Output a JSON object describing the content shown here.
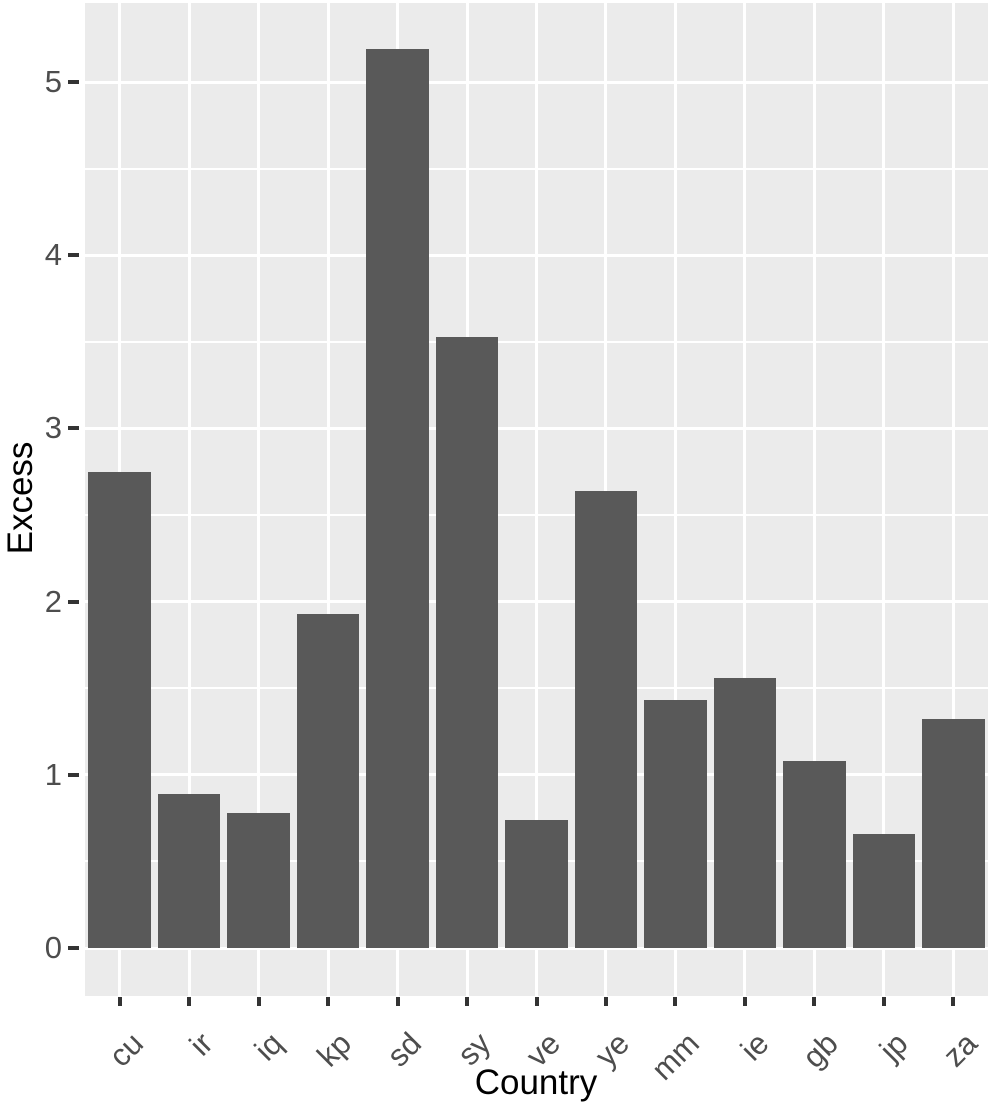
{
  "chart_data": {
    "type": "bar",
    "title": "",
    "xlabel": "Country",
    "ylabel": "Excess",
    "categories": [
      "cu",
      "ir",
      "iq",
      "kp",
      "sd",
      "sy",
      "ve",
      "ye",
      "mm",
      "ie",
      "gb",
      "jp",
      "za"
    ],
    "values": [
      2.75,
      0.89,
      0.78,
      1.93,
      5.19,
      3.53,
      0.74,
      2.64,
      1.43,
      1.56,
      1.08,
      0.66,
      1.32
    ],
    "yticks": [
      0,
      1,
      2,
      3,
      4,
      5
    ],
    "yticks_minor": [
      0.5,
      1.5,
      2.5,
      3.5,
      4.5
    ],
    "ylim": [
      -0.26,
      5.45
    ],
    "x_tick_label_angle": 45,
    "legend_position": "none",
    "grid": {
      "horizontal_major": true,
      "horizontal_minor": true,
      "vertical_at_categories": true
    },
    "style": {
      "outer_background": "#FFFFFF",
      "panel_background": "#EBEBEB",
      "bar_fill": "#595959",
      "grid_color": "#FFFFFF",
      "tick_mark_color": "#333333",
      "tick_label_color": "#4D4D4D",
      "axis_title_color": "#000000"
    }
  }
}
